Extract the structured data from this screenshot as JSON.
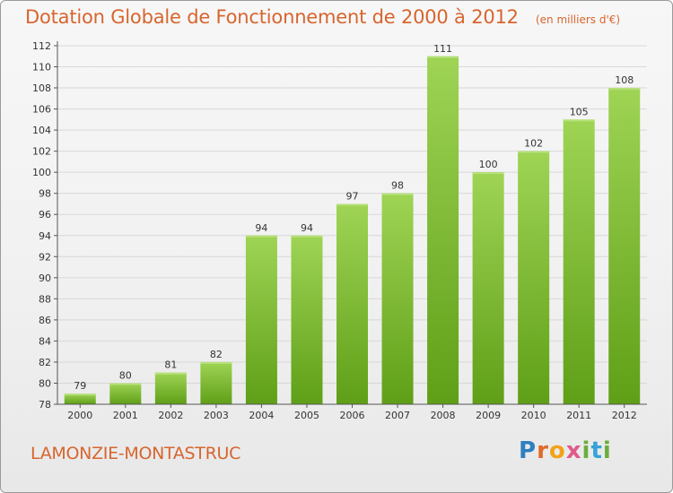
{
  "header": {
    "title": "Dotation Globale de Fonctionnement de 2000 à 2012",
    "subtitle": "(en milliers d'€)"
  },
  "footer": {
    "place_name": "LAMONZIE-MONTASTRUC",
    "logo_text": "Proxiti"
  },
  "colors": {
    "title": "#d7652e",
    "bar_light": "#9fd455",
    "bar_dark": "#5f9f17",
    "grid": "#d8d8d8"
  },
  "chart_data": {
    "type": "bar",
    "categories": [
      "2000",
      "2001",
      "2002",
      "2003",
      "2004",
      "2005",
      "2006",
      "2007",
      "2008",
      "2009",
      "2010",
      "2011",
      "2012"
    ],
    "values": [
      79,
      80,
      81,
      82,
      94,
      94,
      97,
      98,
      111,
      100,
      102,
      105,
      108
    ],
    "ylim": [
      78,
      112
    ],
    "yticks": [
      78,
      80,
      82,
      84,
      86,
      88,
      90,
      92,
      94,
      96,
      98,
      100,
      102,
      104,
      106,
      108,
      110,
      112
    ],
    "grid": true,
    "xlabel": "",
    "ylabel": ""
  }
}
